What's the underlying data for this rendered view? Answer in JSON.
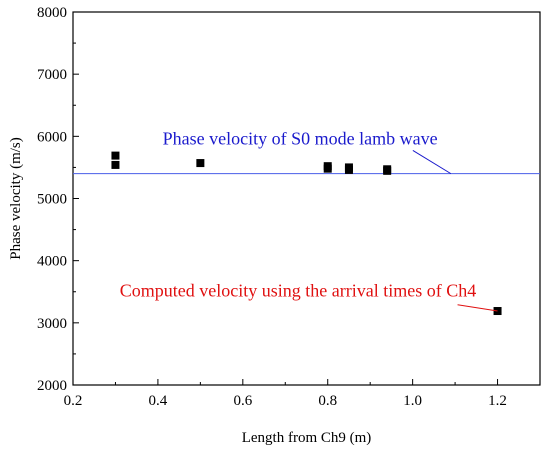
{
  "chart_data": {
    "type": "scatter",
    "xlabel": "Length from Ch9 (m)",
    "ylabel": "Phase velocity (m/s)",
    "xlim": [
      0.2,
      1.3
    ],
    "ylim": [
      2000,
      8000
    ],
    "xticks": [
      0.2,
      0.4,
      0.6,
      0.8,
      1.0,
      1.2
    ],
    "xtick_labels": [
      "0.2",
      "0.4",
      "0.6",
      "0.8",
      "1.0",
      "1.2"
    ],
    "yticks": [
      2000,
      3000,
      4000,
      5000,
      6000,
      7000,
      8000
    ],
    "ytick_labels": [
      "2000",
      "3000",
      "4000",
      "5000",
      "6000",
      "7000",
      "8000"
    ],
    "grid": false,
    "series": [
      {
        "marker": "square",
        "color": "#000000",
        "points": [
          {
            "x": 0.3,
            "y": 5690
          },
          {
            "x": 0.3,
            "y": 5540
          },
          {
            "x": 0.5,
            "y": 5570
          },
          {
            "x": 0.8,
            "y": 5520
          },
          {
            "x": 0.8,
            "y": 5480
          },
          {
            "x": 0.85,
            "y": 5500
          },
          {
            "x": 0.85,
            "y": 5460
          },
          {
            "x": 0.94,
            "y": 5470
          },
          {
            "x": 0.94,
            "y": 5445
          },
          {
            "x": 1.2,
            "y": 3190
          }
        ]
      }
    ],
    "reference_line": {
      "y": 5400,
      "color": "#4a5ee8"
    },
    "annotations": [
      {
        "text": "Phase velocity of S0 mode lamb wave",
        "color": "#1a1acc",
        "text_x": 0.735,
        "text_y": 5870,
        "pointer_to": {
          "x": 1.09,
          "y": 5400
        }
      },
      {
        "text": "Computed velocity using the arrival times of Ch4",
        "color": "#e01010",
        "text_x": 0.73,
        "text_y": 3420,
        "pointer_to": {
          "x": 1.2,
          "y": 3190
        }
      }
    ]
  }
}
